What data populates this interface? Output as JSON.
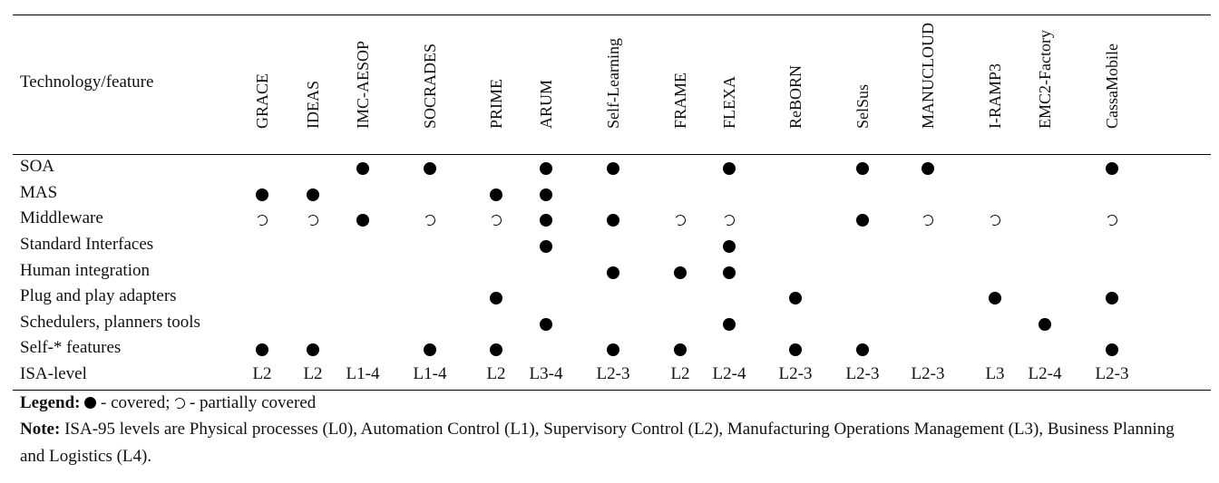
{
  "table": {
    "header_first": "Technology/feature",
    "columns": [
      "GRACE",
      "IDEAS",
      "IMC-AESOP",
      "SOCRADES",
      "PRIME",
      "ARUM",
      "Self-Learning",
      "FRAME",
      "FLEXA",
      "ReBORN",
      "SelSus",
      "MANUCLOUD",
      "I-RAMP3",
      "EMC2-Factory",
      "CassaMobile"
    ],
    "rows": [
      {
        "label": "SOA",
        "cells": [
          "",
          "",
          "covered",
          "covered",
          "",
          "covered",
          "covered",
          "",
          "covered",
          "",
          "covered",
          "covered",
          "",
          "",
          "covered"
        ]
      },
      {
        "label": "MAS",
        "cells": [
          "covered",
          "covered",
          "",
          "",
          "covered",
          "covered",
          "",
          "",
          "",
          "",
          "",
          "",
          "",
          "",
          ""
        ]
      },
      {
        "label": "Middleware",
        "cells": [
          "partial",
          "partial",
          "covered",
          "partial",
          "partial",
          "covered",
          "covered",
          "partial",
          "partial",
          "",
          "covered",
          "partial",
          "partial",
          "",
          "partial"
        ]
      },
      {
        "label": "Standard Interfaces",
        "cells": [
          "",
          "",
          "",
          "",
          "",
          "covered",
          "",
          "",
          "covered",
          "",
          "",
          "",
          "",
          "",
          ""
        ]
      },
      {
        "label": "Human integration",
        "cells": [
          "",
          "",
          "",
          "",
          "",
          "",
          "covered",
          "covered",
          "covered",
          "",
          "",
          "",
          "",
          "",
          ""
        ]
      },
      {
        "label": "Plug and play adapters",
        "cells": [
          "",
          "",
          "",
          "",
          "covered",
          "",
          "",
          "",
          "",
          "covered",
          "",
          "",
          "covered",
          "",
          "covered"
        ]
      },
      {
        "label": "Schedulers, planners tools",
        "cells": [
          "",
          "",
          "",
          "",
          "",
          "covered",
          "",
          "",
          "covered",
          "",
          "",
          "",
          "",
          "covered",
          ""
        ]
      },
      {
        "label": "Self-* features",
        "cells": [
          "covered",
          "covered",
          "",
          "covered",
          "covered",
          "",
          "covered",
          "covered",
          "",
          "covered",
          "covered",
          "",
          "",
          "",
          "covered"
        ]
      }
    ],
    "isa_label": "ISA-level",
    "isa_values": [
      "L2",
      "L2",
      "L1-4",
      "L1-4",
      "L2",
      "L3-4",
      "L2-3",
      "L2",
      "L2-4",
      "L2-3",
      "L2-3",
      "L2-3",
      "L3",
      "L2-4",
      "L2-3"
    ]
  },
  "legend": {
    "title": "Legend:",
    "covered_text": " - covered; ",
    "partial_text": " - partially covered"
  },
  "note": {
    "title": "Note:",
    "text": " ISA-95 levels are Physical processes (L0), Automation Control (L1), Supervisory Control (L2), Manufacturing Operations Management (L3), Business Planning and Logistics (L4)."
  }
}
